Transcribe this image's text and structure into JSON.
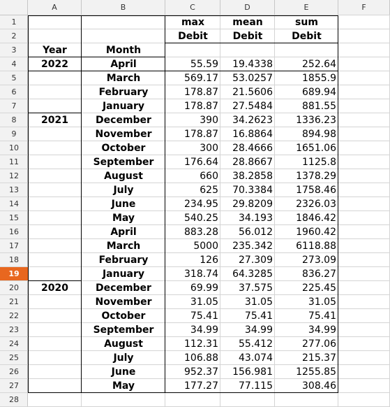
{
  "columns": [
    "A",
    "B",
    "C",
    "D",
    "E",
    "F"
  ],
  "rows": [
    "1",
    "2",
    "3",
    "4",
    "5",
    "6",
    "7",
    "8",
    "9",
    "10",
    "11",
    "12",
    "13",
    "14",
    "15",
    "16",
    "17",
    "18",
    "19",
    "20",
    "21",
    "22",
    "23",
    "24",
    "25",
    "26",
    "27",
    "28"
  ],
  "selected_row": "19",
  "header": {
    "c1": "max",
    "d1": "mean",
    "e1": "sum",
    "c2": "Debit",
    "d2": "Debit",
    "e2": "Debit",
    "a3": "Year",
    "b3": "Month"
  },
  "table": [
    {
      "year": "2022",
      "month": "April",
      "max": "55.59",
      "mean": "19.4338",
      "sum": "252.64"
    },
    {
      "year": "",
      "month": "March",
      "max": "569.17",
      "mean": "53.0257",
      "sum": "1855.9"
    },
    {
      "year": "",
      "month": "February",
      "max": "178.87",
      "mean": "21.5606",
      "sum": "689.94"
    },
    {
      "year": "",
      "month": "January",
      "max": "178.87",
      "mean": "27.5484",
      "sum": "881.55"
    },
    {
      "year": "2021",
      "month": "December",
      "max": "390",
      "mean": "34.2623",
      "sum": "1336.23"
    },
    {
      "year": "",
      "month": "November",
      "max": "178.87",
      "mean": "16.8864",
      "sum": "894.98"
    },
    {
      "year": "",
      "month": "October",
      "max": "300",
      "mean": "28.4666",
      "sum": "1651.06"
    },
    {
      "year": "",
      "month": "September",
      "max": "176.64",
      "mean": "28.8667",
      "sum": "1125.8"
    },
    {
      "year": "",
      "month": "August",
      "max": "660",
      "mean": "38.2858",
      "sum": "1378.29"
    },
    {
      "year": "",
      "month": "July",
      "max": "625",
      "mean": "70.3384",
      "sum": "1758.46"
    },
    {
      "year": "",
      "month": "June",
      "max": "234.95",
      "mean": "29.8209",
      "sum": "2326.03"
    },
    {
      "year": "",
      "month": "May",
      "max": "540.25",
      "mean": "34.193",
      "sum": "1846.42"
    },
    {
      "year": "",
      "month": "April",
      "max": "883.28",
      "mean": "56.012",
      "sum": "1960.42"
    },
    {
      "year": "",
      "month": "March",
      "max": "5000",
      "mean": "235.342",
      "sum": "6118.88"
    },
    {
      "year": "",
      "month": "February",
      "max": "126",
      "mean": "27.309",
      "sum": "273.09"
    },
    {
      "year": "",
      "month": "January",
      "max": "318.74",
      "mean": "64.3285",
      "sum": "836.27"
    },
    {
      "year": "2020",
      "month": "December",
      "max": "69.99",
      "mean": "37.575",
      "sum": "225.45"
    },
    {
      "year": "",
      "month": "November",
      "max": "31.05",
      "mean": "31.05",
      "sum": "31.05"
    },
    {
      "year": "",
      "month": "October",
      "max": "75.41",
      "mean": "75.41",
      "sum": "75.41"
    },
    {
      "year": "",
      "month": "September",
      "max": "34.99",
      "mean": "34.99",
      "sum": "34.99"
    },
    {
      "year": "",
      "month": "August",
      "max": "112.31",
      "mean": "55.412",
      "sum": "277.06"
    },
    {
      "year": "",
      "month": "July",
      "max": "106.88",
      "mean": "43.074",
      "sum": "215.37"
    },
    {
      "year": "",
      "month": "June",
      "max": "952.37",
      "mean": "156.981",
      "sum": "1255.85"
    },
    {
      "year": "",
      "month": "May",
      "max": "177.27",
      "mean": "77.115",
      "sum": "308.46"
    }
  ]
}
